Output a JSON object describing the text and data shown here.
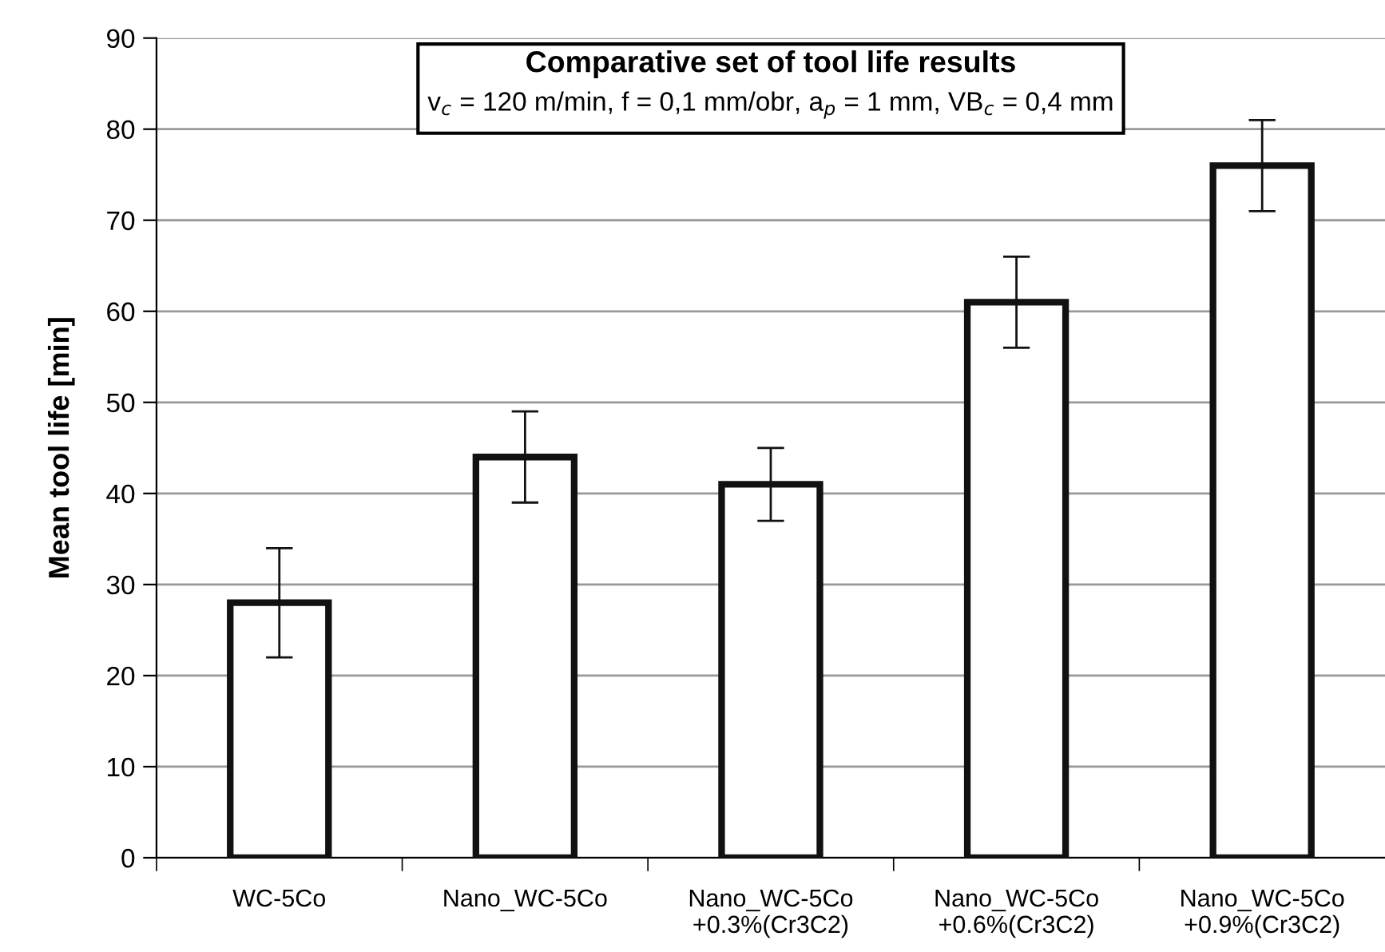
{
  "chart_data": {
    "type": "bar",
    "title": "Comparative set of tool life results",
    "subtitle": "v$_{c}$ = 120 m/min, f = 0,1 mm/obr, a$_{p}$ = 1 mm, VB$_{c}$ = 0,4 mm",
    "ylabel": "Mean tool life [min]",
    "categories": [
      "WC-5Co",
      "Nano_WC-5Co",
      "Nano_WC-5Co\n+0.3%(Cr3C2)",
      "Nano_WC-5Co\n+0.6%(Cr3C2)",
      "Nano_WC-5Co\n+0.9%(Cr3C2)"
    ],
    "values": [
      28,
      44,
      41,
      61,
      76
    ],
    "errors": [
      6,
      5,
      4,
      5,
      5
    ],
    "color": "#ffffff",
    "ylim": [
      0,
      90
    ],
    "yticks": [
      0,
      10,
      20,
      30,
      40,
      50,
      60,
      70,
      80,
      90
    ],
    "grid": "y",
    "legend": false
  }
}
